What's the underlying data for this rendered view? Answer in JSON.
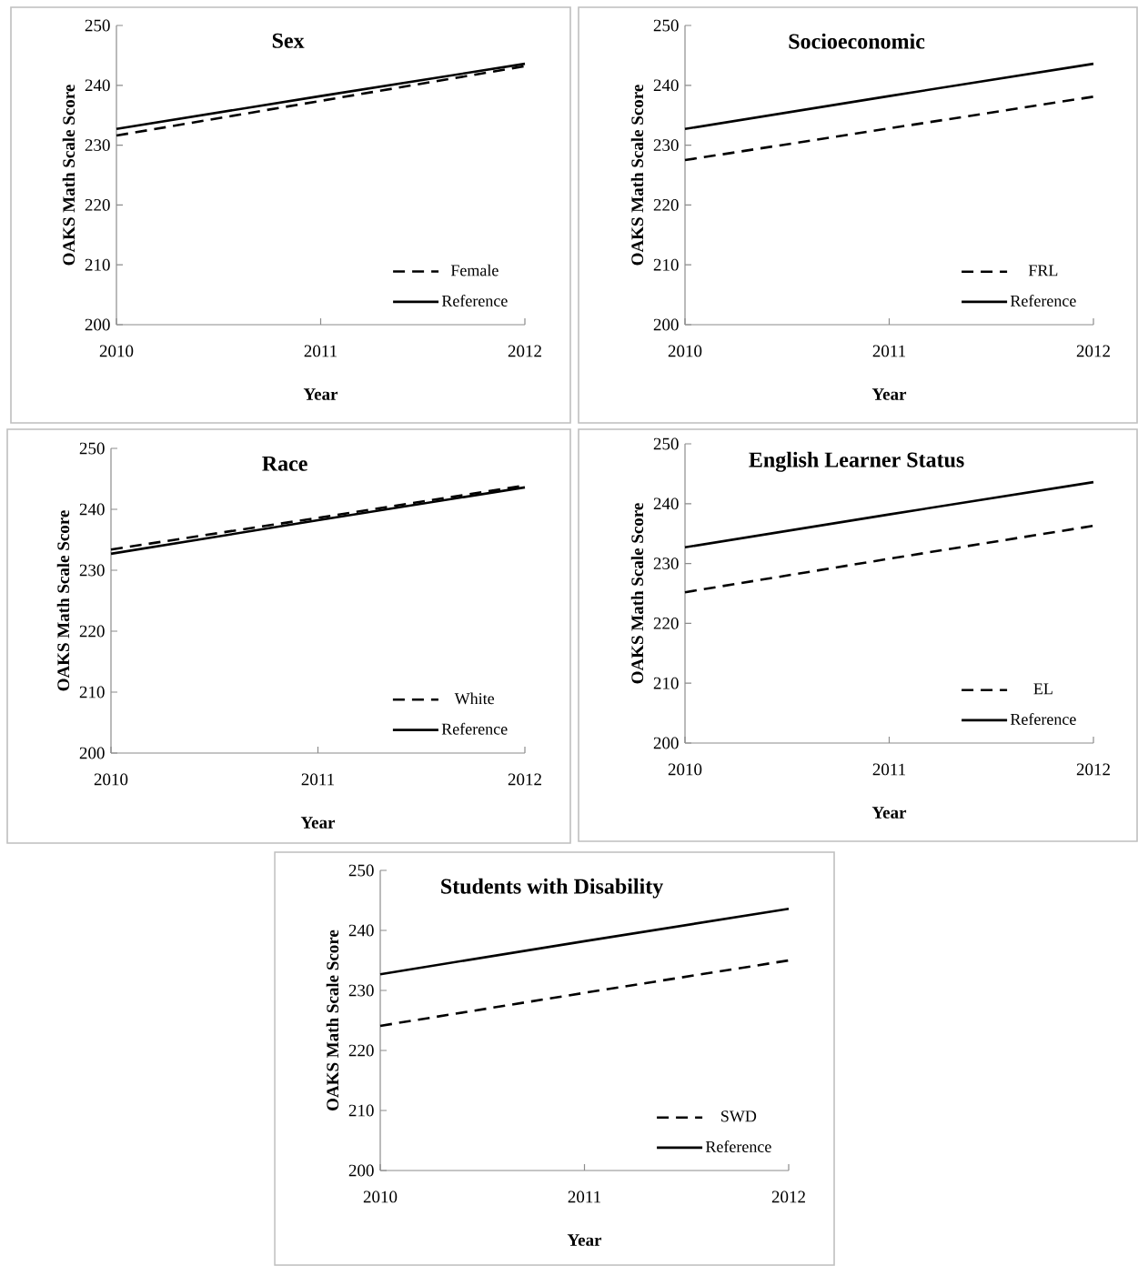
{
  "chart_data": [
    {
      "type": "line",
      "title": "Sex",
      "xlabel": "Year",
      "ylabel": "OAKS Math Scale Score",
      "categories": [
        "2010",
        "2011",
        "2012"
      ],
      "ylim": [
        200,
        250
      ],
      "yticks": [
        200,
        210,
        220,
        230,
        240,
        250
      ],
      "legend": "bottom right",
      "series": [
        {
          "name": "Female",
          "color": "#000000",
          "line_style": "dashed",
          "values": [
            231.6,
            237.4,
            243.2
          ]
        },
        {
          "name": "Reference",
          "color": "#000000",
          "line_style": "solid",
          "values": [
            232.7,
            238.2,
            243.6
          ]
        }
      ]
    },
    {
      "type": "line",
      "title": "Socioeconomic",
      "xlabel": "Year",
      "ylabel": "OAKS Math Scale Score",
      "categories": [
        "2010",
        "2011",
        "2012"
      ],
      "ylim": [
        200,
        250
      ],
      "yticks": [
        200,
        210,
        220,
        230,
        240,
        250
      ],
      "legend": "bottom right",
      "series": [
        {
          "name": "FRL",
          "color": "#000000",
          "line_style": "dashed",
          "values": [
            227.5,
            232.8,
            238.1
          ]
        },
        {
          "name": "Reference",
          "color": "#000000",
          "line_style": "solid",
          "values": [
            232.7,
            238.2,
            243.6
          ]
        }
      ]
    },
    {
      "type": "line",
      "title": "Race",
      "xlabel": "Year",
      "ylabel": "OAKS Math Scale Score",
      "categories": [
        "2010",
        "2011",
        "2012"
      ],
      "ylim": [
        200,
        250
      ],
      "yticks": [
        200,
        210,
        220,
        230,
        240,
        250
      ],
      "legend": "bottom right",
      "series": [
        {
          "name": "White",
          "color": "#000000",
          "line_style": "dashed",
          "values": [
            233.4,
            238.6,
            243.9
          ]
        },
        {
          "name": "Reference",
          "color": "#000000",
          "line_style": "solid",
          "values": [
            232.7,
            238.2,
            243.6
          ]
        }
      ]
    },
    {
      "type": "line",
      "title": "English Learner Status",
      "xlabel": "Year",
      "ylabel": "OAKS Math Scale Score",
      "categories": [
        "2010",
        "2011",
        "2012"
      ],
      "ylim": [
        200,
        250
      ],
      "yticks": [
        200,
        210,
        220,
        230,
        240,
        250
      ],
      "legend": "bottom right",
      "series": [
        {
          "name": "EL",
          "color": "#000000",
          "line_style": "dashed",
          "values": [
            225.2,
            230.8,
            236.3
          ]
        },
        {
          "name": "Reference",
          "color": "#000000",
          "line_style": "solid",
          "values": [
            232.7,
            238.2,
            243.6
          ]
        }
      ]
    },
    {
      "type": "line",
      "title": "Students with Disability",
      "xlabel": "Year",
      "ylabel": "OAKS Math Scale Score",
      "categories": [
        "2010",
        "2011",
        "2012"
      ],
      "ylim": [
        200,
        250
      ],
      "yticks": [
        200,
        210,
        220,
        230,
        240,
        250
      ],
      "legend": "bottom right",
      "series": [
        {
          "name": "SWD",
          "color": "#000000",
          "line_style": "dashed",
          "values": [
            224.1,
            229.6,
            235.0
          ]
        },
        {
          "name": "Reference",
          "color": "#000000",
          "line_style": "solid",
          "values": [
            232.7,
            238.2,
            243.6
          ]
        }
      ]
    }
  ]
}
